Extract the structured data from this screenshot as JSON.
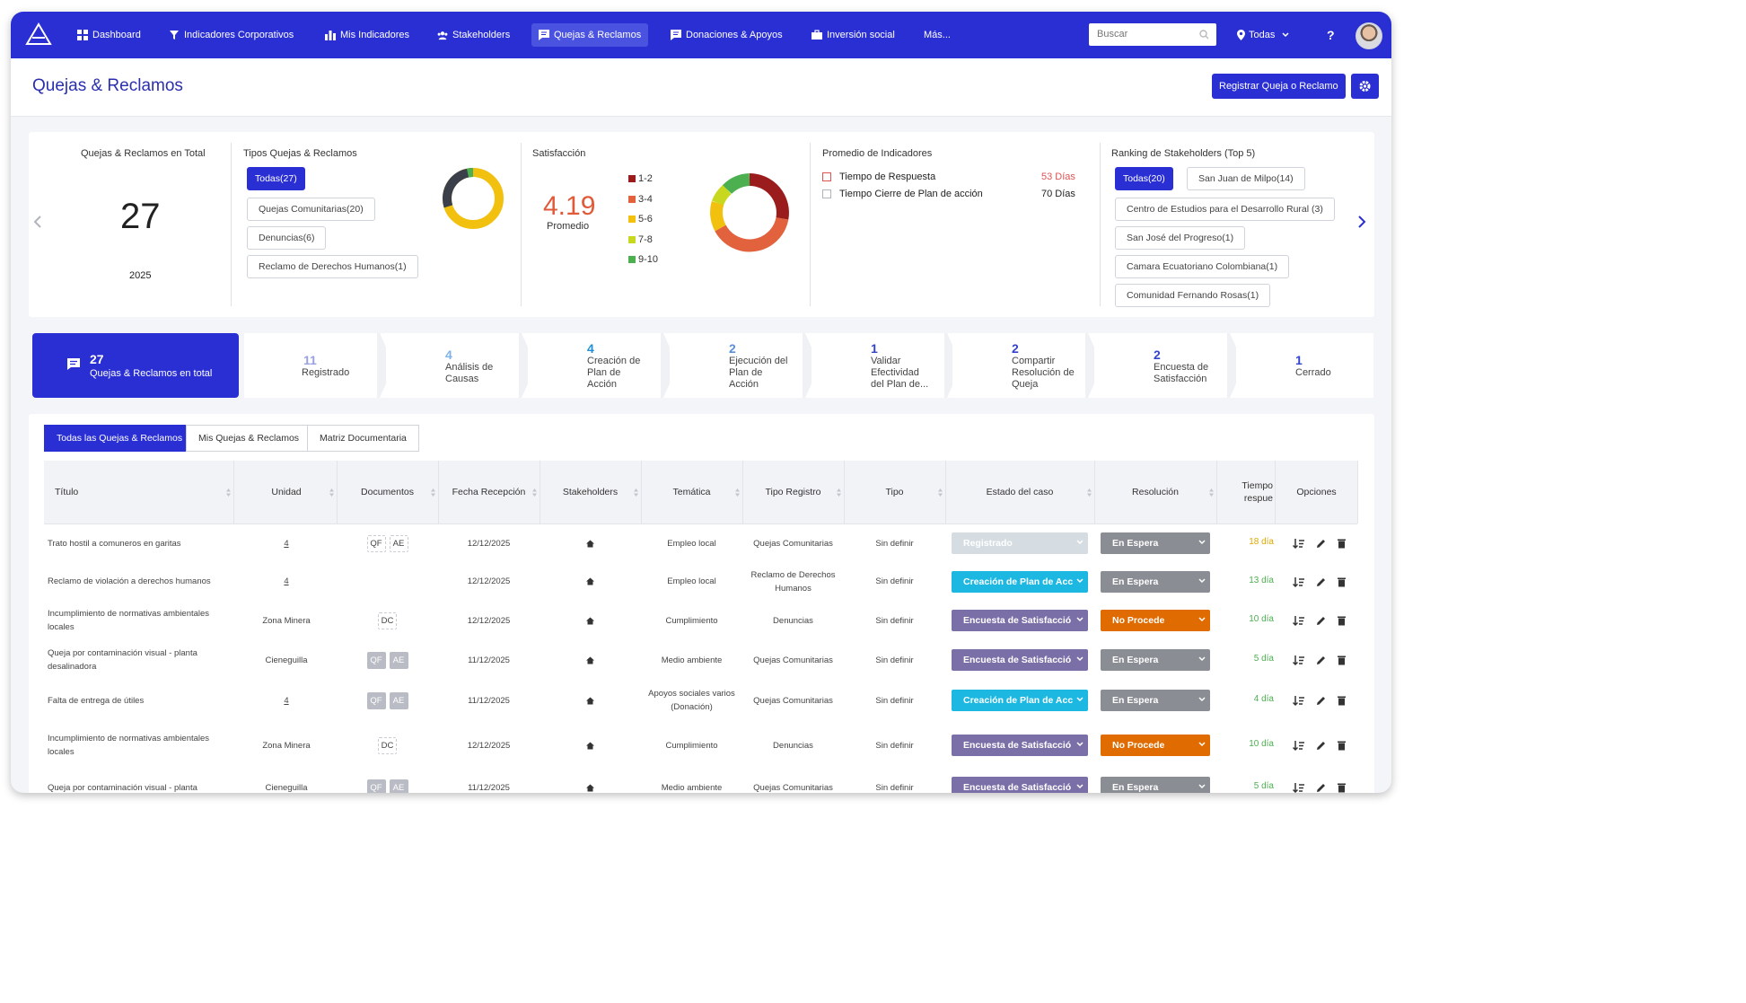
{
  "nav": {
    "items": [
      {
        "label": "Dashboard",
        "icon": "grid-icon"
      },
      {
        "label": "Indicadores Corporativos",
        "icon": "pin-icon"
      },
      {
        "label": "Mis Indicadores",
        "icon": "bar-chart-icon"
      },
      {
        "label": "Stakeholders",
        "icon": "users-icon"
      },
      {
        "label": "Quejas & Reclamos",
        "icon": "chat-icon"
      },
      {
        "label": "Donaciones & Apoyos",
        "icon": "chat-icon"
      },
      {
        "label": "Inversión social",
        "icon": "briefcase-icon"
      },
      {
        "label": "Más...",
        "icon": ""
      }
    ],
    "search_placeholder": "Buscar",
    "location": "Todas",
    "help": "?"
  },
  "header": {
    "title": "Quejas & Reclamos",
    "register_button": "Registrar Queja o Reclamo"
  },
  "stats": {
    "total": {
      "title": "Quejas & Reclamos en Total",
      "value": "27",
      "year": "2025"
    },
    "types": {
      "title": "Tipos Quejas & Reclamos",
      "chips": [
        "Todas(27)",
        "Quejas Comunitarias(20)",
        "Denuncias(6)",
        "Reclamo de Derechos Humanos(1)"
      ]
    },
    "satisfaction": {
      "title": "Satisfacción",
      "average": "4.19",
      "average_label": "Promedio",
      "legend": [
        {
          "label": "1-2",
          "color": "#9b1c1c"
        },
        {
          "label": "3-4",
          "color": "#e2623e"
        },
        {
          "label": "5-6",
          "color": "#f2c00f"
        },
        {
          "label": "7-8",
          "color": "#c8d81e"
        },
        {
          "label": "9-10",
          "color": "#4caf50"
        }
      ]
    },
    "indicators": {
      "title": "Promedio de Indicadores",
      "rows": [
        {
          "label": "Tiempo de Respuesta",
          "value": "53 Días",
          "color": "#e05252"
        },
        {
          "label": "Tiempo Cierre de Plan de acción",
          "value": "70 Días",
          "color": "#222222"
        }
      ]
    },
    "ranking": {
      "title": "Ranking de Stakeholders (Top 5)",
      "chips": [
        "Todas(20)",
        "San Juan de Milpo(14)",
        "Centro de Estudios para el Desarrollo Rural (3)",
        "San José del Progreso(1)",
        "Camara Ecuatoriano Colombiana(1)",
        "Comunidad Fernando Rosas(1)"
      ]
    }
  },
  "pipeline": {
    "main": {
      "num": "27",
      "label": "Quejas & Reclamos en total"
    },
    "steps": [
      {
        "num": "11",
        "lines": [
          "Registrado"
        ]
      },
      {
        "num": "4",
        "lines": [
          "Análisis de",
          "Causas"
        ]
      },
      {
        "num": "4",
        "lines": [
          "Creación de",
          "Plan de",
          "Acción"
        ]
      },
      {
        "num": "2",
        "lines": [
          "Ejecución del",
          "Plan de",
          "Acción"
        ]
      },
      {
        "num": "1",
        "lines": [
          "Validar",
          "Efectividad",
          "del Plan de..."
        ]
      },
      {
        "num": "2",
        "lines": [
          "Compartir",
          "Resolución de",
          "Queja"
        ]
      },
      {
        "num": "2",
        "lines": [
          "Encuesta de",
          "Satisfacción"
        ]
      },
      {
        "num": "1",
        "lines": [
          "Cerrado"
        ]
      }
    ]
  },
  "tabs": [
    "Todas las Quejas & Reclamos",
    "Mis Quejas & Reclamos",
    "Matriz Documentaria"
  ],
  "table": {
    "headers": [
      "Título",
      "Unidad",
      "Documentos",
      "Fecha Recepción",
      "Stakeholders",
      "Temática",
      "Tipo Registro",
      "Tipo",
      "Estado del caso",
      "Resolución",
      "Tiempo respue",
      "Opciones"
    ],
    "rows": [
      {
        "title": "Trato hostil a comuneros en garitas",
        "unit": "4",
        "docs": [
          "QF",
          "AE"
        ],
        "docs_filled": false,
        "date": "12/12/2025",
        "tematica": "Empleo local",
        "tipo_registro": "Quejas Comunitarias",
        "tipo": "Sin definir",
        "estado": "Registrado",
        "estado_color": "#d6dde2",
        "resolucion": "En Espera",
        "resolucion_color": "#8a8d94",
        "tiempo": "18 día",
        "tiempo_color": "#e0a800"
      },
      {
        "title": "Reclamo de violación a derechos humanos",
        "unit": "4",
        "docs": [],
        "docs_filled": false,
        "date": "12/12/2025",
        "tematica": "Empleo local",
        "tipo_registro": "Reclamo de Derechos Humanos",
        "tipo": "Sin definir",
        "estado": "Creación de Plan de Acc",
        "estado_color": "#1cb8e2",
        "resolucion": "En Espera",
        "resolucion_color": "#8a8d94",
        "tiempo": "13 día",
        "tiempo_color": "#4caf50"
      },
      {
        "title": "Incumplimiento de normativas ambientales locales",
        "unit": "Zona Minera",
        "docs": [
          "DC"
        ],
        "docs_filled": false,
        "date": "12/12/2025",
        "tematica": "Cumplimiento",
        "tipo_registro": "Denuncias",
        "tipo": "Sin definir",
        "estado": "Encuesta de Satisfacció",
        "estado_color": "#7b6fa8",
        "resolucion": "No Procede",
        "resolucion_color": "#e06b00",
        "tiempo": "10 día",
        "tiempo_color": "#4caf50"
      },
      {
        "title": "Queja por contaminación visual - planta desalinadora",
        "unit": "Cieneguilla",
        "docs": [
          "QF",
          "AE"
        ],
        "docs_filled": true,
        "date": "11/12/2025",
        "tematica": "Medio ambiente",
        "tipo_registro": "Quejas Comunitarias",
        "tipo": "Sin definir",
        "estado": "Encuesta de Satisfacció",
        "estado_color": "#7b6fa8",
        "resolucion": "En Espera",
        "resolucion_color": "#8a8d94",
        "tiempo": "5 día",
        "tiempo_color": "#4caf50"
      },
      {
        "title": "Falta de entrega de útiles",
        "unit": "4",
        "docs": [
          "QF",
          "AE"
        ],
        "docs_filled": true,
        "date": "11/12/2025",
        "tematica": "Apoyos sociales varios (Donación)",
        "tipo_registro": "Quejas Comunitarias",
        "tipo": "Sin definir",
        "estado": "Creación de Plan de Acc",
        "estado_color": "#1cb8e2",
        "resolucion": "En Espera",
        "resolucion_color": "#8a8d94",
        "tiempo": "4 día",
        "tiempo_color": "#4caf50"
      },
      {
        "title": "Incumplimiento de normativas ambientales locales",
        "unit": "Zona Minera",
        "docs": [
          "DC"
        ],
        "docs_filled": false,
        "date": "12/12/2025",
        "tematica": "Cumplimiento",
        "tipo_registro": "Denuncias",
        "tipo": "Sin definir",
        "estado": "Encuesta de Satisfacció",
        "estado_color": "#7b6fa8",
        "resolucion": "No Procede",
        "resolucion_color": "#e06b00",
        "tiempo": "10 día",
        "tiempo_color": "#4caf50"
      },
      {
        "title": "Queja por contaminación visual - planta",
        "unit": "Cieneguilla",
        "docs": [
          "QF",
          "AE"
        ],
        "docs_filled": true,
        "date": "11/12/2025",
        "tematica": "Medio ambiente",
        "tipo_registro": "Quejas Comunitarias",
        "tipo": "Sin definir",
        "estado": "Encuesta de Satisfacció",
        "estado_color": "#7b6fa8",
        "resolucion": "En Espera",
        "resolucion_color": "#8a8d94",
        "tiempo": "5 día",
        "tiempo_color": "#4caf50"
      }
    ]
  },
  "colors": {
    "brand": "#2a2fd4",
    "title": "#2a2fb0"
  }
}
